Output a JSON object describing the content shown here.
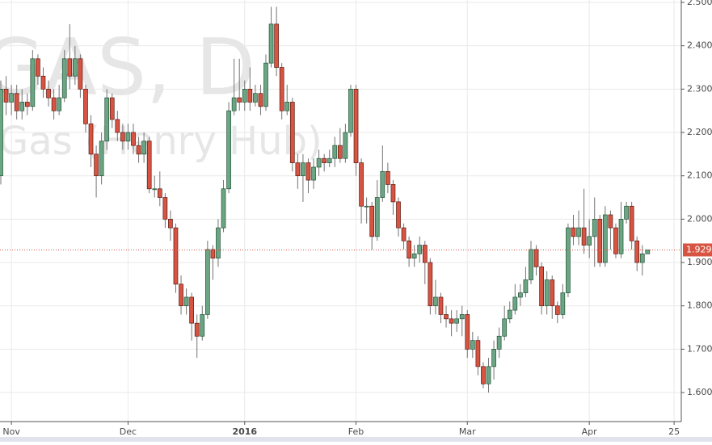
{
  "chart_data": {
    "type": "candlestick",
    "watermark": "GAS, D",
    "subtitle": "Gas (Henry Hub)",
    "up_color": "#6ba583",
    "down_color": "#d75442",
    "categories": [
      null,
      null,
      "Nov",
      null,
      null,
      null,
      null,
      null,
      null,
      null,
      null,
      null,
      null,
      null,
      null,
      null,
      null,
      null,
      null,
      null,
      null,
      null,
      null,
      null,
      "Dec",
      null,
      null,
      null,
      null,
      null,
      null,
      null,
      null,
      null,
      null,
      null,
      null,
      null,
      null,
      null,
      null,
      null,
      null,
      null,
      null,
      null,
      "2016",
      null,
      null,
      null,
      null,
      null,
      null,
      null,
      null,
      null,
      null,
      null,
      null,
      null,
      null,
      null,
      null,
      null,
      null,
      null,
      null,
      "Feb",
      null,
      null,
      null,
      null,
      null,
      null,
      null,
      null,
      null,
      null,
      null,
      null,
      null,
      null,
      null,
      null,
      null,
      null,
      null,
      null,
      "Mar",
      null,
      null,
      null,
      null,
      null,
      null,
      null,
      null,
      null,
      null,
      null,
      null,
      null,
      null,
      null,
      null,
      null,
      null,
      null,
      null,
      null,
      null,
      "Apr",
      null,
      null,
      null,
      null,
      null,
      null,
      null,
      null,
      null,
      null,
      null,
      null,
      null,
      null,
      null,
      "25"
    ],
    "open": [
      2.1,
      2.3,
      2.27,
      2.29,
      2.25,
      2.27,
      2.26,
      2.37,
      2.33,
      2.3,
      2.28,
      2.25,
      2.28,
      2.37,
      2.33,
      2.37,
      2.3,
      2.22,
      2.15,
      2.1,
      2.18,
      2.28,
      2.23,
      2.2,
      2.18,
      2.2,
      2.17,
      2.15,
      2.18,
      2.07,
      2.07,
      2.05,
      2.0,
      1.98,
      1.85,
      1.8,
      1.82,
      1.76,
      1.73,
      1.78,
      1.93,
      1.91,
      1.98,
      2.07,
      2.25,
      2.28,
      2.27,
      2.3,
      2.27,
      2.29,
      2.26,
      2.36,
      2.45,
      2.35,
      2.25,
      2.27,
      2.13,
      2.1,
      2.13,
      2.09,
      2.12,
      2.14,
      2.13,
      2.14,
      2.17,
      2.14,
      2.2,
      2.3,
      2.13,
      2.03,
      2.03,
      1.96,
      2.05,
      2.11,
      2.08,
      2.04,
      1.98,
      1.95,
      1.91,
      1.92,
      1.94,
      1.9,
      1.8,
      1.82,
      1.78,
      1.77,
      1.76,
      1.77,
      1.78,
      1.7,
      1.72,
      1.66,
      1.62,
      1.66,
      1.7,
      1.73,
      1.77,
      1.79,
      1.82,
      1.83,
      1.86,
      1.93,
      1.89,
      1.8,
      1.86,
      1.8,
      1.78,
      1.83,
      1.98,
      1.96,
      1.98,
      1.94,
      1.96,
      2.0,
      1.9,
      2.01,
      1.98,
      1.92,
      2.0,
      2.03,
      1.95,
      1.9,
      1.92,
      null,
      null,
      null,
      null,
      null
    ],
    "high": [
      2.32,
      2.33,
      2.31,
      2.31,
      2.3,
      2.29,
      2.39,
      2.38,
      2.35,
      2.32,
      2.3,
      2.31,
      2.39,
      2.45,
      2.4,
      2.38,
      2.31,
      2.24,
      2.17,
      2.2,
      2.3,
      2.29,
      2.25,
      2.22,
      2.22,
      2.22,
      2.19,
      2.2,
      2.19,
      2.1,
      2.11,
      2.06,
      2.02,
      1.99,
      1.87,
      1.84,
      1.83,
      1.78,
      1.8,
      1.95,
      1.94,
      2.0,
      2.09,
      2.27,
      2.37,
      2.37,
      2.32,
      2.35,
      2.31,
      2.31,
      2.38,
      2.49,
      2.49,
      2.36,
      2.31,
      2.28,
      2.15,
      2.15,
      2.14,
      2.14,
      2.16,
      2.15,
      2.16,
      2.19,
      2.21,
      2.22,
      2.31,
      2.31,
      2.14,
      2.05,
      2.04,
      2.09,
      2.17,
      2.13,
      2.09,
      2.05,
      1.99,
      1.96,
      1.94,
      1.96,
      1.95,
      1.91,
      1.86,
      1.83,
      1.8,
      1.79,
      1.79,
      1.8,
      1.79,
      1.74,
      1.73,
      1.67,
      1.68,
      1.72,
      1.75,
      1.8,
      1.81,
      1.85,
      1.85,
      1.89,
      1.95,
      1.94,
      1.9,
      1.88,
      1.87,
      1.81,
      1.85,
      1.99,
      2.01,
      2.02,
      2.07,
      2.0,
      2.05,
      2.01,
      2.03,
      2.02,
      1.99,
      2.04,
      2.04,
      2.04,
      1.96,
      1.94,
      1.93,
      null,
      null,
      null,
      null,
      null
    ],
    "low": [
      2.08,
      2.24,
      2.24,
      2.23,
      2.23,
      2.24,
      2.25,
      2.31,
      2.28,
      2.26,
      2.23,
      2.24,
      2.27,
      2.3,
      2.31,
      2.28,
      2.2,
      2.12,
      2.05,
      2.08,
      2.16,
      2.21,
      2.18,
      2.16,
      2.16,
      2.15,
      2.13,
      2.13,
      2.06,
      2.05,
      2.03,
      1.98,
      1.95,
      1.83,
      1.78,
      1.78,
      1.72,
      1.68,
      1.72,
      1.77,
      1.86,
      1.89,
      1.97,
      2.06,
      2.24,
      2.25,
      2.25,
      2.25,
      2.26,
      2.24,
      2.25,
      2.35,
      2.33,
      2.23,
      2.24,
      2.11,
      2.07,
      2.04,
      2.06,
      2.07,
      2.1,
      2.11,
      2.12,
      2.12,
      2.13,
      2.13,
      2.19,
      2.1,
      1.99,
      1.99,
      1.93,
      1.95,
      2.04,
      2.06,
      2.01,
      1.96,
      1.93,
      1.89,
      1.89,
      1.9,
      1.85,
      1.78,
      1.78,
      1.76,
      1.75,
      1.73,
      1.74,
      1.73,
      1.68,
      1.68,
      1.64,
      1.61,
      1.6,
      1.63,
      1.68,
      1.72,
      1.76,
      1.78,
      1.8,
      1.82,
      1.85,
      1.87,
      1.78,
      1.78,
      1.77,
      1.76,
      1.77,
      1.82,
      1.94,
      1.94,
      1.92,
      1.91,
      1.89,
      1.89,
      1.89,
      1.93,
      1.91,
      1.91,
      1.99,
      1.93,
      1.88,
      1.87,
      1.92,
      null,
      null,
      null,
      null,
      null
    ],
    "close": [
      2.3,
      2.27,
      2.29,
      2.25,
      2.27,
      2.26,
      2.37,
      2.33,
      2.3,
      2.28,
      2.25,
      2.28,
      2.37,
      2.33,
      2.37,
      2.3,
      2.22,
      2.15,
      2.1,
      2.18,
      2.28,
      2.23,
      2.2,
      2.18,
      2.2,
      2.17,
      2.15,
      2.18,
      2.07,
      2.07,
      2.05,
      2.0,
      1.98,
      1.85,
      1.8,
      1.82,
      1.76,
      1.73,
      1.78,
      1.93,
      1.91,
      1.98,
      2.07,
      2.25,
      2.28,
      2.27,
      2.3,
      2.27,
      2.29,
      2.26,
      2.36,
      2.45,
      2.35,
      2.25,
      2.27,
      2.13,
      2.1,
      2.13,
      2.09,
      2.12,
      2.14,
      2.13,
      2.14,
      2.17,
      2.14,
      2.2,
      2.3,
      2.13,
      2.03,
      2.03,
      1.96,
      2.05,
      2.11,
      2.08,
      2.04,
      1.98,
      1.95,
      1.91,
      1.92,
      1.94,
      1.9,
      1.8,
      1.82,
      1.78,
      1.77,
      1.76,
      1.77,
      1.78,
      1.7,
      1.72,
      1.66,
      1.62,
      1.66,
      1.7,
      1.73,
      1.77,
      1.79,
      1.82,
      1.83,
      1.86,
      1.93,
      1.89,
      1.8,
      1.86,
      1.8,
      1.78,
      1.83,
      1.98,
      1.96,
      1.98,
      1.94,
      1.96,
      2.0,
      1.9,
      2.01,
      1.98,
      1.92,
      2.0,
      2.03,
      1.95,
      1.9,
      1.92,
      1.929,
      null,
      null,
      null,
      null,
      null
    ],
    "last_price": 1.929,
    "ylim": [
      1.533,
      2.5056
    ],
    "yticks": [
      {
        "value": 1.6,
        "label": "1.600"
      },
      {
        "value": 1.7,
        "label": "1.700"
      },
      {
        "value": 1.8,
        "label": "1.800"
      },
      {
        "value": 1.9,
        "label": "1.900"
      },
      {
        "value": 2.0,
        "label": "2.000"
      },
      {
        "value": 2.1,
        "label": "2.100"
      },
      {
        "value": 2.2,
        "label": "2.200"
      },
      {
        "value": 2.3,
        "label": "2.300"
      },
      {
        "value": 2.4,
        "label": "2.400"
      },
      {
        "value": 2.5,
        "label": "2.500"
      }
    ],
    "grid": true
  }
}
